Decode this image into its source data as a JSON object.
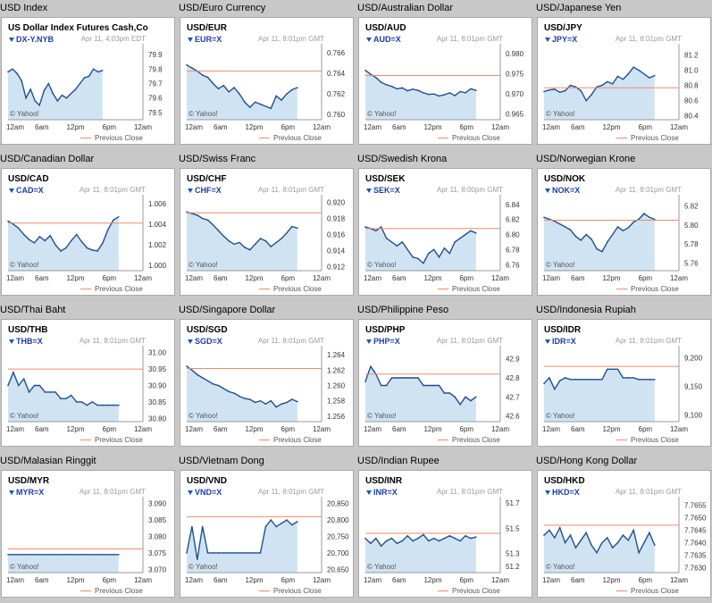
{
  "colors": {
    "line": "#1f4f8f",
    "fill": "#cfe3f3",
    "prev": "#f08a6a",
    "grid_bg": "#c8c8c8"
  },
  "common": {
    "watermark": "© Yahoo!",
    "prev_label": "Previous Close",
    "x_ticks": [
      "12am",
      "6am",
      "12pm",
      "6pm",
      "12am"
    ]
  },
  "chart_data": [
    {
      "type": "line",
      "header": "USD Index",
      "pair": "US Dollar Index Futures Cash,Co",
      "symbol": "DX-Y.NYB",
      "stamp": "Apr 11, 4:03pm EDT",
      "y_ticks": [
        "79.9",
        "79.8",
        "79.7",
        "79.6",
        "79.5"
      ],
      "ylim": [
        79.45,
        79.95
      ],
      "prev_close": null,
      "coverage": 0.7,
      "values": [
        79.78,
        79.8,
        79.77,
        79.72,
        79.6,
        79.66,
        79.58,
        79.55,
        79.65,
        79.7,
        79.63,
        79.58,
        79.62,
        79.6,
        79.63,
        79.66,
        79.7,
        79.74,
        79.75,
        79.8,
        79.78,
        79.79
      ]
    },
    {
      "type": "line",
      "header": "USD/Euro Currency",
      "pair": "USD/EUR",
      "symbol": "EUR=X",
      "stamp": "Apr 11, 8:01pm GMT",
      "y_ticks": [
        "0.766",
        "0.764",
        "0.762",
        "0.760"
      ],
      "ylim": [
        0.7595,
        0.7665
      ],
      "prev_close": 0.7642,
      "coverage": 0.82,
      "values": [
        0.7648,
        0.7645,
        0.7642,
        0.7638,
        0.7636,
        0.763,
        0.7625,
        0.7628,
        0.7622,
        0.7626,
        0.762,
        0.7612,
        0.7607,
        0.7612,
        0.761,
        0.7608,
        0.7606,
        0.7618,
        0.7614,
        0.762,
        0.7624,
        0.7626
      ]
    },
    {
      "type": "line",
      "header": "USD/Australian Dollar",
      "pair": "USD/AUD",
      "symbol": "AUD=X",
      "stamp": "Apr 11, 8:01pm GMT",
      "y_ticks": [
        "0.980",
        "0.975",
        "0.970",
        "0.965"
      ],
      "ylim": [
        0.9635,
        0.9815
      ],
      "prev_close": 0.9745,
      "coverage": 0.82,
      "values": [
        0.9758,
        0.9748,
        0.974,
        0.9728,
        0.9722,
        0.9718,
        0.9712,
        0.9714,
        0.9707,
        0.9711,
        0.9708,
        0.9702,
        0.9698,
        0.9699,
        0.9694,
        0.9697,
        0.9702,
        0.9695,
        0.9705,
        0.9702,
        0.9712,
        0.9708
      ]
    },
    {
      "type": "line",
      "header": "USD/Japanese Yen",
      "pair": "USD/JPY",
      "symbol": "JPY=X",
      "stamp": "Apr 11, 8:01pm GMT",
      "y_ticks": [
        "81.2",
        "81.0",
        "80.8",
        "80.6",
        "80.4"
      ],
      "ylim": [
        80.35,
        81.3
      ],
      "prev_close": 80.77,
      "coverage": 0.82,
      "values": [
        80.72,
        80.74,
        80.75,
        80.71,
        80.73,
        80.8,
        80.78,
        80.73,
        80.6,
        80.68,
        80.78,
        80.8,
        80.85,
        80.82,
        80.92,
        80.88,
        80.95,
        81.04,
        81.0,
        80.95,
        80.9,
        80.93
      ]
    },
    {
      "type": "line",
      "header": "USD/Canadian Dollar",
      "pair": "USD/CAD",
      "symbol": "CAD=X",
      "stamp": "Apr 11, 8:01pm GMT",
      "y_ticks": [
        "1.006",
        "1.004",
        "1.002",
        "1.000"
      ],
      "ylim": [
        0.9995,
        1.0065
      ],
      "prev_close": 1.0041,
      "coverage": 0.82,
      "values": [
        1.0043,
        1.004,
        1.0036,
        1.003,
        1.0025,
        1.0022,
        1.0028,
        1.0024,
        1.0029,
        1.002,
        1.0014,
        1.0017,
        1.0024,
        1.003,
        1.0023,
        1.0017,
        1.0015,
        1.0014,
        1.0022,
        1.0035,
        1.0044,
        1.0047
      ]
    },
    {
      "type": "line",
      "header": "USD/Swiss Franc",
      "pair": "USD/CHF",
      "symbol": "CHF=X",
      "stamp": "Apr 11, 8:01pm GMT",
      "y_ticks": [
        "0.920",
        "0.918",
        "0.916",
        "0.914",
        "0.912"
      ],
      "ylim": [
        0.9115,
        0.9205
      ],
      "prev_close": 0.9187,
      "coverage": 0.82,
      "values": [
        0.9188,
        0.9186,
        0.9184,
        0.918,
        0.9178,
        0.9172,
        0.9165,
        0.9158,
        0.9152,
        0.9148,
        0.915,
        0.9144,
        0.9141,
        0.9148,
        0.9155,
        0.9152,
        0.9145,
        0.915,
        0.9155,
        0.9162,
        0.917,
        0.9168
      ]
    },
    {
      "type": "line",
      "header": "USD/Swedish Krona",
      "pair": "USD/SEK",
      "symbol": "SEK=X",
      "stamp": "Apr 11, 8:00pm GMT",
      "y_ticks": [
        "6.84",
        "6.82",
        "6.80",
        "6.78",
        "6.76"
      ],
      "ylim": [
        6.752,
        6.848
      ],
      "prev_close": 6.808,
      "coverage": 0.82,
      "values": [
        6.81,
        6.808,
        6.805,
        6.81,
        6.795,
        6.79,
        6.785,
        6.79,
        6.78,
        6.77,
        6.768,
        6.762,
        6.775,
        6.78,
        6.77,
        6.782,
        6.775,
        6.79,
        6.795,
        6.8,
        6.805,
        6.802
      ]
    },
    {
      "type": "line",
      "header": "USD/Norwegian Krone",
      "pair": "USD/NOK",
      "symbol": "NOK=X",
      "stamp": "Apr 11, 8:01pm GMT",
      "y_ticks": [
        "5.82",
        "5.80",
        "5.78",
        "5.76"
      ],
      "ylim": [
        5.752,
        5.828
      ],
      "prev_close": 5.805,
      "coverage": 0.82,
      "values": [
        5.808,
        5.806,
        5.804,
        5.801,
        5.798,
        5.795,
        5.788,
        5.784,
        5.79,
        5.785,
        5.775,
        5.772,
        5.782,
        5.79,
        5.798,
        5.794,
        5.797,
        5.803,
        5.806,
        5.812,
        5.808,
        5.806
      ]
    },
    {
      "type": "line",
      "header": "USD/Thai Baht",
      "pair": "USD/THB",
      "symbol": "THB=X",
      "stamp": "Apr 11, 8:01pm GMT",
      "y_ticks": [
        "31.00",
        "30.95",
        "30.90",
        "30.85",
        "30.80"
      ],
      "ylim": [
        30.79,
        31.01
      ],
      "prev_close": 30.95,
      "coverage": 0.82,
      "values": [
        30.9,
        30.94,
        30.9,
        30.92,
        30.88,
        30.9,
        30.9,
        30.88,
        30.88,
        30.88,
        30.86,
        30.86,
        30.87,
        30.85,
        30.85,
        30.84,
        30.85,
        30.84,
        30.84,
        30.84,
        30.84,
        30.84
      ]
    },
    {
      "type": "line",
      "header": "USD/Singapore Dollar",
      "pair": "USD/SGD",
      "symbol": "SGD=X",
      "stamp": "Apr 11, 8:01pm GMT",
      "y_ticks": [
        "1.264",
        "1.262",
        "1.260",
        "1.258",
        "1.256"
      ],
      "ylim": [
        1.2553,
        1.2647
      ],
      "prev_close": 1.2622,
      "coverage": 0.82,
      "values": [
        1.2625,
        1.262,
        1.2614,
        1.261,
        1.2606,
        1.2602,
        1.26,
        1.2596,
        1.2592,
        1.259,
        1.2586,
        1.2583,
        1.2582,
        1.2578,
        1.258,
        1.2576,
        1.258,
        1.2572,
        1.2576,
        1.2578,
        1.2582,
        1.2579
      ]
    },
    {
      "type": "line",
      "header": "USD/Philippine Peso",
      "pair": "USD/PHP",
      "symbol": "PHP=X",
      "stamp": "Apr 11, 8:01pm GMT",
      "y_ticks": [
        "42.9",
        "42.8",
        "42.7",
        "42.6"
      ],
      "ylim": [
        42.57,
        42.95
      ],
      "prev_close": 42.82,
      "coverage": 0.82,
      "values": [
        42.78,
        42.86,
        42.82,
        42.76,
        42.76,
        42.8,
        42.8,
        42.8,
        42.8,
        42.8,
        42.8,
        42.76,
        42.76,
        42.76,
        42.76,
        42.72,
        42.72,
        42.7,
        42.66,
        42.7,
        42.68,
        42.7
      ]
    },
    {
      "type": "line",
      "header": "USD/Indonesia Rupiah",
      "pair": "USD/IDR",
      "symbol": "IDR=X",
      "stamp": "Apr 11, 8:01pm GMT",
      "y_ticks": [
        "9,200",
        "9,150",
        "9,100"
      ],
      "ylim": [
        9088,
        9215
      ],
      "prev_close": 9185,
      "coverage": 0.82,
      "values": [
        9155,
        9165,
        9145,
        9160,
        9165,
        9162,
        9162,
        9162,
        9162,
        9162,
        9162,
        9162,
        9180,
        9180,
        9180,
        9165,
        9165,
        9165,
        9162,
        9162,
        9162,
        9162
      ]
    },
    {
      "type": "line",
      "header": "USD/Malasian Ringgit",
      "pair": "USD/MYR",
      "symbol": "MYR=X",
      "stamp": "Apr 11, 8:01pm GMT",
      "y_ticks": [
        "3.090",
        "3.085",
        "3.080",
        "3.075",
        "3.070"
      ],
      "ylim": [
        3.069,
        3.091
      ],
      "prev_close": 3.0762,
      "coverage": 0.82,
      "values": [
        3.0745,
        3.0745,
        3.0745,
        3.0745,
        3.0745,
        3.0745,
        3.0745,
        3.0745,
        3.0745,
        3.0745,
        3.0745,
        3.0745,
        3.0745,
        3.0745,
        3.0745,
        3.0745,
        3.0745,
        3.0745,
        3.0745,
        3.0745,
        3.0745,
        3.0745
      ]
    },
    {
      "type": "line",
      "header": "USD/Vietnam Dong",
      "pair": "USD/VND",
      "symbol": "VND=X",
      "stamp": "Apr 11, 8:01pm GMT",
      "y_ticks": [
        "20,850",
        "20,800",
        "20,750",
        "20,700",
        "20,650"
      ],
      "ylim": [
        20640,
        20860
      ],
      "prev_close": 20810,
      "coverage": 0.82,
      "values": [
        20700,
        20780,
        20680,
        20780,
        20700,
        20700,
        20700,
        20700,
        20700,
        20700,
        20700,
        20700,
        20700,
        20700,
        20700,
        20780,
        20800,
        20780,
        20790,
        20800,
        20785,
        20795
      ]
    },
    {
      "type": "line",
      "header": "USD/Indian Rupee",
      "pair": "USD/INR",
      "symbol": "INR=X",
      "stamp": "Apr 11, 8:01pm GMT",
      "y_ticks": [
        "51.7",
        "51.5",
        "51.3",
        "51.2"
      ],
      "ylim": [
        51.15,
        51.72
      ],
      "prev_close": 51.46,
      "coverage": 0.82,
      "values": [
        51.42,
        51.38,
        51.42,
        51.36,
        51.4,
        51.42,
        51.38,
        51.4,
        51.44,
        51.4,
        51.42,
        51.45,
        51.4,
        51.42,
        51.4,
        51.42,
        51.44,
        51.42,
        51.4,
        51.44,
        51.42,
        51.43
      ]
    },
    {
      "type": "line",
      "header": "USD/Hong Kong Dollar",
      "pair": "USD/HKD",
      "symbol": "HKD=X",
      "stamp": "Apr 11, 8:01pm GMT",
      "y_ticks": [
        "7.7655",
        "7.7650",
        "7.7645",
        "7.7640",
        "7.7635",
        "7.7630"
      ],
      "ylim": [
        7.7628,
        7.7657
      ],
      "prev_close": 7.7647,
      "coverage": 0.82,
      "values": [
        7.7643,
        7.7645,
        7.7642,
        7.7646,
        7.764,
        7.7643,
        7.7638,
        7.7641,
        7.7644,
        7.7639,
        7.7636,
        7.764,
        7.7642,
        7.7638,
        7.764,
        7.7643,
        7.7641,
        7.7645,
        7.7636,
        7.764,
        7.7644,
        7.7639
      ]
    }
  ]
}
